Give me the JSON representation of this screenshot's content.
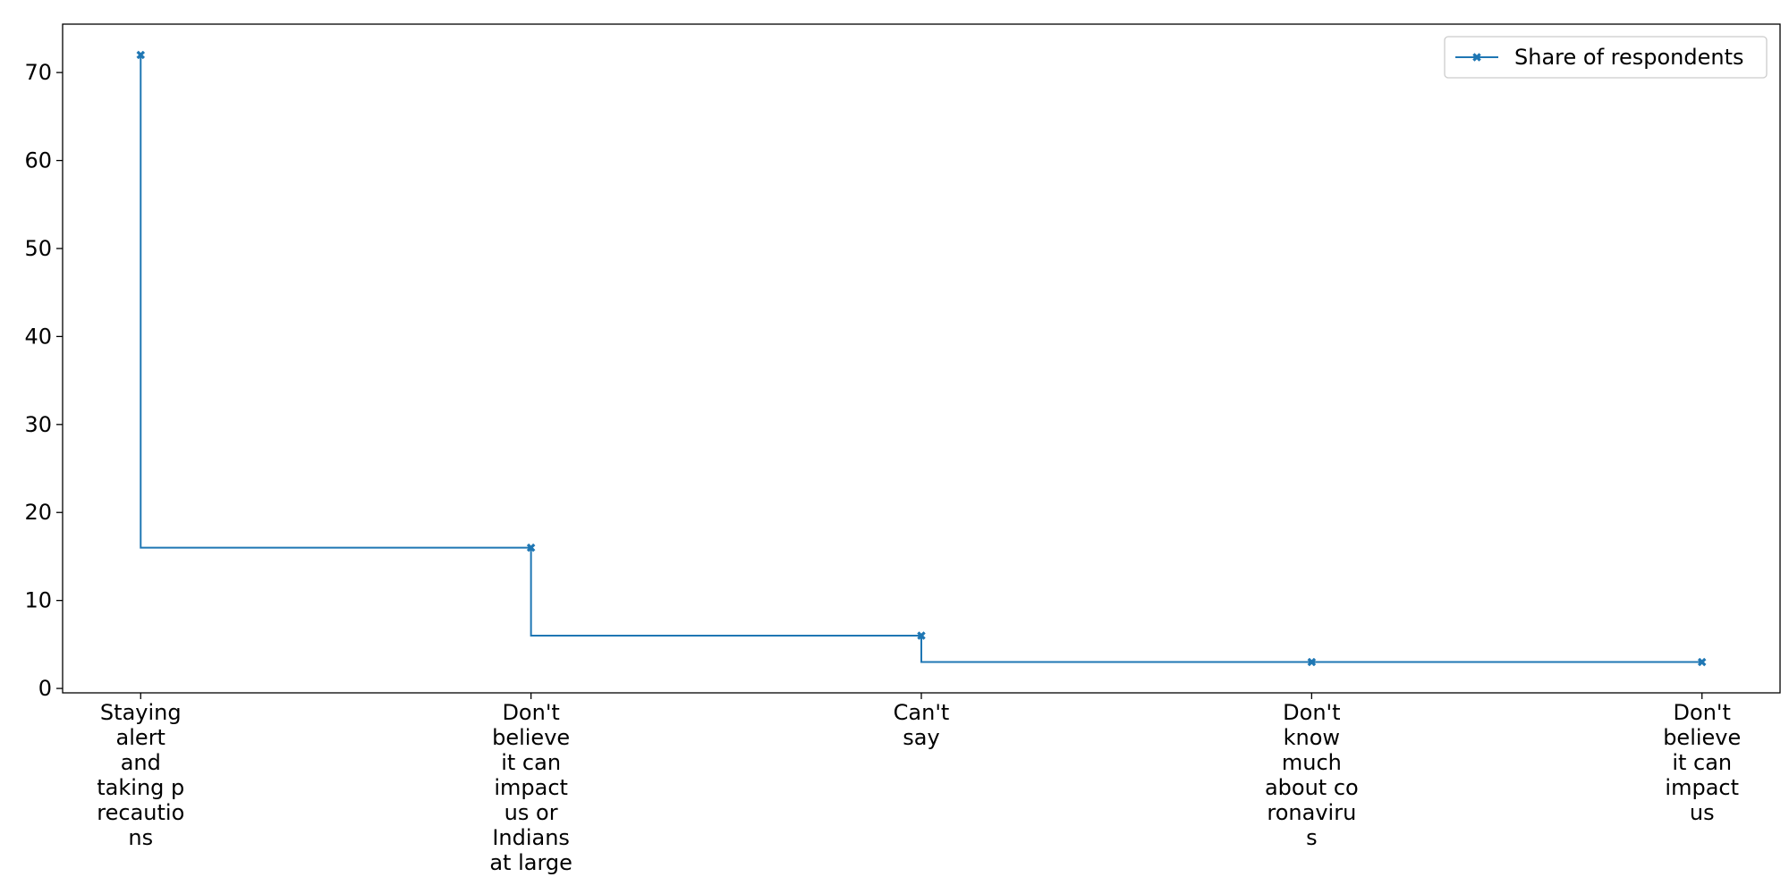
{
  "chart_data": {
    "type": "line",
    "step": "post",
    "categories": [
      [
        "Staying",
        "alert",
        "and",
        "taking p",
        "recautio",
        "ns"
      ],
      [
        "Don't",
        "believe",
        "it can",
        "impact",
        "us or",
        "Indians",
        "at large"
      ],
      [
        "Can't",
        "say"
      ],
      [
        "Don't",
        "know",
        "much",
        "about co",
        "ronaviru",
        "s"
      ],
      [
        "Don't",
        "believe",
        "it can",
        "impact",
        "us"
      ]
    ],
    "series": [
      {
        "name": "Share of respondents",
        "values": [
          72,
          16,
          6,
          3,
          3
        ],
        "color": "#1f77b4",
        "marker": "x-filled"
      }
    ],
    "yticks": [
      0,
      10,
      20,
      30,
      40,
      50,
      60,
      70
    ],
    "ylim": [
      -0.5,
      75.5
    ],
    "grid": false,
    "legend": "top-right",
    "title": "",
    "xlabel": "",
    "ylabel": ""
  }
}
